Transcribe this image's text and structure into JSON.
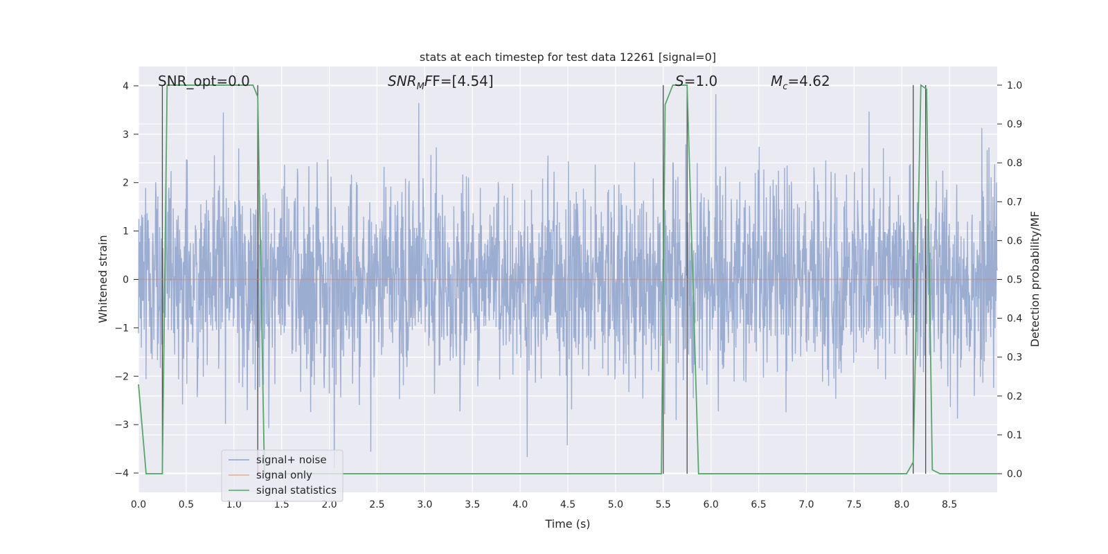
{
  "chart_data": {
    "type": "line",
    "title": "stats at each timestep for test data 12261 [signal=0]",
    "xlabel": "Time (s)",
    "ylabel_left": "Whitened strain",
    "ylabel_right": "Detection probability/MF",
    "xlim": [
      0.0,
      9.0
    ],
    "ylim_left": [
      -4.4,
      4.4
    ],
    "ylim_right": [
      -0.048,
      1.048
    ],
    "x_ticks": [
      0.0,
      0.5,
      1.0,
      1.5,
      2.0,
      2.5,
      3.0,
      3.5,
      4.0,
      4.5,
      5.0,
      5.5,
      6.0,
      6.5,
      7.0,
      7.5,
      8.0,
      8.5
    ],
    "x_tick_labels": [
      "0.0",
      "0.5",
      "1.0",
      "1.5",
      "2.0",
      "2.5",
      "3.0",
      "3.5",
      "4.0",
      "4.5",
      "5.0",
      "5.5",
      "6.0",
      "6.5",
      "7.0",
      "7.5",
      "8.0",
      "8.5"
    ],
    "left_ticks": [
      -4,
      -3,
      -2,
      -1,
      0,
      1,
      2,
      3,
      4
    ],
    "left_tick_labels": [
      "−4",
      "−3",
      "−2",
      "−1",
      "0",
      "1",
      "2",
      "3",
      "4"
    ],
    "right_ticks": [
      0.0,
      0.1,
      0.2,
      0.3,
      0.4,
      0.5,
      0.6,
      0.7,
      0.8,
      0.9,
      1.0
    ],
    "right_tick_labels": [
      "0.0",
      "0.1",
      "0.2",
      "0.3",
      "0.4",
      "0.5",
      "0.6",
      "0.7",
      "0.8",
      "0.9",
      "1.0"
    ],
    "grid": true,
    "legend_position": "lower-left",
    "series": [
      {
        "name": "signal+ noise",
        "color": "#8ea2cc",
        "axis": "left",
        "x_start": 0.0,
        "x_end": 9.0,
        "envelope_upper": 3.9,
        "envelope_lower": -3.9,
        "typical_range": [
          -1.6,
          1.6
        ],
        "note_values": "dense noisy trace"
      },
      {
        "name": "signal only",
        "color": "#dd8452",
        "axis": "left",
        "x": [
          0.0,
          9.0
        ],
        "values": [
          0.0,
          0.0
        ]
      },
      {
        "name": "signal statistics",
        "color": "#55a868",
        "axis": "right",
        "x": [
          0.0,
          0.08,
          0.25,
          0.3,
          1.2,
          1.25,
          1.32,
          2.5,
          2.6,
          5.48,
          5.52,
          5.6,
          5.75,
          5.87,
          8.05,
          8.12,
          8.2,
          8.26,
          8.32,
          8.4,
          9.0
        ],
        "values": [
          0.23,
          0.0,
          0.0,
          1.0,
          1.0,
          0.97,
          0.0,
          0.0,
          0.0,
          0.0,
          0.95,
          1.0,
          1.0,
          0.0,
          0.0,
          0.03,
          1.0,
          0.99,
          0.01,
          0.0,
          0.0
        ]
      }
    ],
    "vertical_markers": {
      "color": "#4c4c4c",
      "x": [
        0.25,
        1.25,
        5.5,
        5.75,
        8.12,
        8.25
      ]
    },
    "annotations": [
      {
        "text": "SNR_opt=0.0",
        "x": 0.2
      },
      {
        "text_main": "SNR",
        "text_sub": "M",
        "text_tail": "F=[4.54]",
        "x": 2.6
      },
      {
        "text_main": "S",
        "text_tail": "=1.0",
        "x": 5.6
      },
      {
        "text_main": "M",
        "text_sub": "c",
        "text_tail": "=4.62",
        "x": 6.6
      }
    ]
  }
}
